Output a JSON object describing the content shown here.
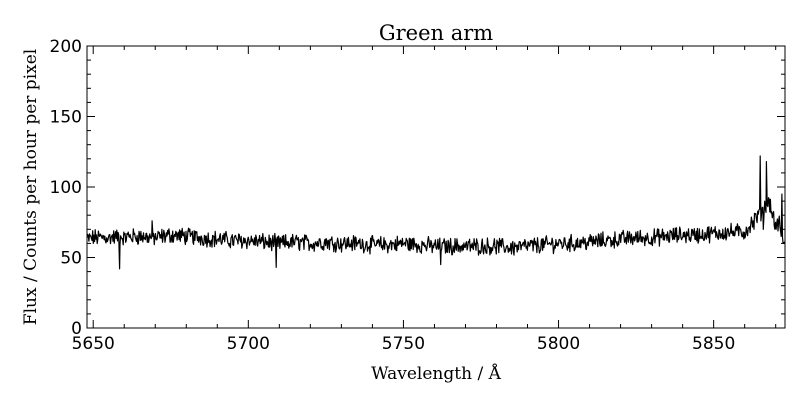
{
  "chart_data": {
    "type": "line",
    "title": "Green arm",
    "xlabel": "Wavelength / Å",
    "ylabel": "Flux / Counts per hour per pixel",
    "xlim": [
      5648,
      5873
    ],
    "ylim": [
      0,
      200
    ],
    "xticks": [
      5650,
      5700,
      5750,
      5800,
      5850
    ],
    "yticks": [
      0,
      50,
      100,
      150,
      200
    ],
    "x_tick_labels": [
      "5650",
      "5700",
      "5750",
      "5800",
      "5850"
    ],
    "y_tick_labels": [
      "0",
      "50",
      "100",
      "150",
      "200"
    ],
    "grid": false,
    "legend": "none",
    "line_color": "#000000",
    "series": [
      {
        "x": [
          5648,
          5650,
          5655,
          5658.5,
          5660,
          5665,
          5669,
          5670,
          5675,
          5680,
          5685,
          5690,
          5695,
          5700,
          5705,
          5709,
          5710,
          5715,
          5720,
          5725,
          5730,
          5735,
          5740,
          5745,
          5750,
          5755,
          5760,
          5762,
          5765,
          5770,
          5775,
          5780,
          5785,
          5790,
          5795,
          5800,
          5805,
          5810,
          5815,
          5820,
          5825,
          5830,
          5835,
          5840,
          5845,
          5850,
          5855,
          5860,
          5863,
          5865,
          5866,
          5867,
          5868,
          5869,
          5870,
          5871,
          5872,
          5873
        ],
        "y": [
          63,
          64,
          65,
          42,
          66,
          65,
          76,
          64,
          66,
          65,
          64,
          63,
          62,
          62,
          61,
          43,
          60,
          61,
          60,
          61,
          60,
          60,
          59,
          59,
          60,
          59,
          58,
          45,
          58,
          58,
          58,
          58,
          57,
          58,
          59,
          60,
          60,
          61,
          62,
          63,
          64,
          64,
          65,
          66,
          66,
          67,
          68,
          68,
          70,
          122,
          70,
          118,
          90,
          80,
          72,
          75,
          95,
          57
        ]
      }
    ]
  }
}
